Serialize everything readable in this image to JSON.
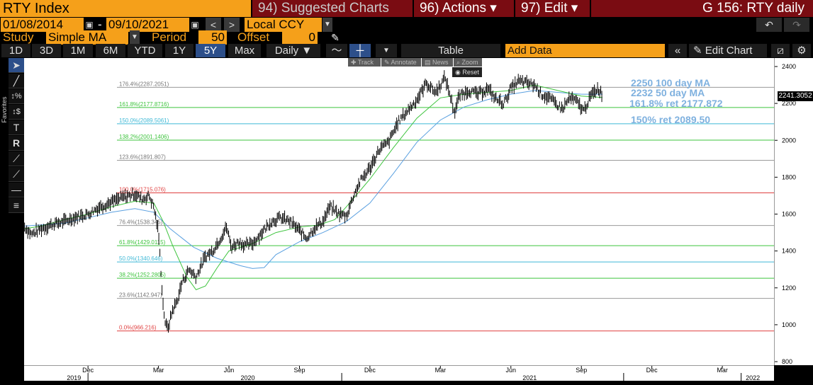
{
  "header": {
    "ticker": "RTY Index",
    "suggested": "94) Suggested Charts",
    "actions": "96) Actions ▾",
    "edit": "97) Edit ▾",
    "title": "G 156: RTY daily"
  },
  "controls": {
    "start_date": "01/08/2014",
    "separator": "-",
    "end_date": "09/10/2021",
    "currency": "Local CCY",
    "study_label": "Study",
    "study_value": "Simple MA",
    "period_label": "Period",
    "period_value": "50",
    "offset_label": "Offset",
    "offset_value": "0"
  },
  "periods": [
    "1D",
    "3D",
    "1M",
    "6M",
    "YTD",
    "1Y",
    "5Y",
    "Max"
  ],
  "selected_period": "5Y",
  "toolbar": {
    "frequency": "Daily ▼",
    "table": "Table",
    "add_data": "Add Data",
    "edit_chart": "Edit Chart"
  },
  "mini_toolbar": {
    "track": "Track",
    "annotate": "Annotate",
    "news": "News",
    "zoom": "Zoom",
    "reset": "Reset"
  },
  "sidebar": {
    "favorites": "Favorites"
  },
  "chart_data": {
    "type": "line",
    "series": [
      {
        "name": "RTY Index",
        "color": "#000000"
      },
      {
        "name": "50 day MA",
        "color": "#3ec43e"
      },
      {
        "name": "100 day MA",
        "color": "#5aa0e0"
      }
    ],
    "y_ticks": [
      "2400",
      "2200",
      "2000",
      "1800",
      "1600",
      "1400",
      "1200",
      "1000",
      "800"
    ],
    "ylim": [
      800,
      2420
    ],
    "x_ticks": [
      {
        "label": "Dec",
        "month": 0
      },
      {
        "label": "Mar",
        "month": 3
      },
      {
        "label": "Jun",
        "month": 6
      },
      {
        "label": "Sep",
        "month": 9
      },
      {
        "label": "Dec",
        "month": 12
      },
      {
        "label": "Mar",
        "month": 15
      },
      {
        "label": "Jun",
        "month": 18
      },
      {
        "label": "Sep",
        "month": 21
      },
      {
        "label": "Dec",
        "month": 24
      },
      {
        "label": "Mar",
        "month": 27
      }
    ],
    "x_years": [
      {
        "label": "2019",
        "month": -0.6
      },
      {
        "label": "2020",
        "month": 6.8
      },
      {
        "label": "2021",
        "month": 18.8
      },
      {
        "label": "2022",
        "month": 28.3
      }
    ],
    "fib_levels": [
      {
        "label": "176.4%(2287.2051)",
        "value": 2287.2051,
        "color": "#9a9a9a"
      },
      {
        "label": "161.8%(2177.8716)",
        "value": 2177.8716,
        "color": "#3ec43e"
      },
      {
        "label": "150.0%(2089.5061)",
        "value": 2089.5061,
        "color": "#3fb9d6"
      },
      {
        "label": "138.2%(2001.1406)",
        "value": 2001.1406,
        "color": "#3ec43e"
      },
      {
        "label": "123.6%(1891.807)",
        "value": 1891.807,
        "color": "#9a9a9a"
      },
      {
        "label": "100.0%(1715.076)",
        "value": 1715.076,
        "color": "#e04040"
      },
      {
        "label": "76.4%(1538.345)",
        "value": 1538.345,
        "color": "#9a9a9a"
      },
      {
        "label": "61.8%(1429.0115)",
        "value": 1429.0115,
        "color": "#3ec43e"
      },
      {
        "label": "50.0%(1340.646)",
        "value": 1340.646,
        "color": "#3fb9d6"
      },
      {
        "label": "38.2%(1252.2805)",
        "value": 1252.2805,
        "color": "#3ec43e"
      },
      {
        "label": "23.6%(1142.947)",
        "value": 1142.947,
        "color": "#9a9a9a"
      },
      {
        "label": "0.0%(966.216)",
        "value": 966.216,
        "color": "#e04040"
      }
    ],
    "price": [
      [
        -2.7,
        1530
      ],
      [
        -2.4,
        1490
      ],
      [
        -2,
        1520
      ],
      [
        -1.5,
        1545
      ],
      [
        -1,
        1560
      ],
      [
        -0.5,
        1585
      ],
      [
        0,
        1600
      ],
      [
        0.5,
        1640
      ],
      [
        1,
        1665
      ],
      [
        1.5,
        1690
      ],
      [
        2,
        1710
      ],
      [
        2.3,
        1680
      ],
      [
        2.6,
        1700
      ],
      [
        2.8,
        1640
      ],
      [
        3.0,
        1500
      ],
      [
        3.1,
        1300
      ],
      [
        3.2,
        1100
      ],
      [
        3.3,
        1000
      ],
      [
        3.4,
        980
      ],
      [
        3.6,
        1080
      ],
      [
        3.8,
        1130
      ],
      [
        4.0,
        1230
      ],
      [
        4.3,
        1300
      ],
      [
        4.6,
        1260
      ],
      [
        5.0,
        1370
      ],
      [
        5.3,
        1400
      ],
      [
        5.6,
        1460
      ],
      [
        5.9,
        1530
      ],
      [
        6.1,
        1420
      ],
      [
        6.4,
        1450
      ],
      [
        6.7,
        1430
      ],
      [
        7,
        1440
      ],
      [
        7.4,
        1500
      ],
      [
        7.8,
        1560
      ],
      [
        8.2,
        1580
      ],
      [
        8.6,
        1560
      ],
      [
        9,
        1510
      ],
      [
        9.3,
        1470
      ],
      [
        9.6,
        1520
      ],
      [
        10,
        1560
      ],
      [
        10.3,
        1640
      ],
      [
        10.7,
        1600
      ],
      [
        11,
        1590
      ],
      [
        11.3,
        1700
      ],
      [
        11.6,
        1780
      ],
      [
        12,
        1850
      ],
      [
        12.4,
        1950
      ],
      [
        12.8,
        1990
      ],
      [
        13.2,
        2100
      ],
      [
        13.6,
        2160
      ],
      [
        14,
        2220
      ],
      [
        14.4,
        2310
      ],
      [
        14.8,
        2260
      ],
      [
        15,
        2300
      ],
      [
        15.2,
        2340
      ],
      [
        15.4,
        2250
      ],
      [
        15.6,
        2150
      ],
      [
        15.8,
        2240
      ],
      [
        16.2,
        2270
      ],
      [
        16.6,
        2250
      ],
      [
        17,
        2280
      ],
      [
        17.4,
        2220
      ],
      [
        17.7,
        2200
      ],
      [
        18,
        2280
      ],
      [
        18.3,
        2320
      ],
      [
        18.7,
        2310
      ],
      [
        19,
        2300
      ],
      [
        19.3,
        2250
      ],
      [
        19.6,
        2230
      ],
      [
        19.9,
        2200
      ],
      [
        20.2,
        2170
      ],
      [
        20.5,
        2230
      ],
      [
        20.8,
        2210
      ],
      [
        21.1,
        2160
      ],
      [
        21.4,
        2240
      ],
      [
        21.7,
        2280
      ],
      [
        21.9,
        2250
      ]
    ],
    "ma50": [
      [
        -2.7,
        1520
      ],
      [
        -2,
        1535
      ],
      [
        -1,
        1570
      ],
      [
        0,
        1600
      ],
      [
        1,
        1640
      ],
      [
        2,
        1670
      ],
      [
        2.8,
        1660
      ],
      [
        3.2,
        1560
      ],
      [
        3.6,
        1430
      ],
      [
        4.2,
        1260
      ],
      [
        4.6,
        1190
      ],
      [
        5,
        1210
      ],
      [
        5.5,
        1310
      ],
      [
        6,
        1400
      ],
      [
        7,
        1440
      ],
      [
        8,
        1500
      ],
      [
        9,
        1530
      ],
      [
        9.8,
        1540
      ],
      [
        10.5,
        1570
      ],
      [
        11,
        1640
      ],
      [
        12,
        1790
      ],
      [
        13,
        1960
      ],
      [
        14,
        2120
      ],
      [
        15,
        2230
      ],
      [
        16,
        2250
      ],
      [
        17,
        2260
      ],
      [
        18,
        2270
      ],
      [
        19,
        2300
      ],
      [
        20,
        2270
      ],
      [
        21,
        2240
      ],
      [
        21.9,
        2232
      ]
    ],
    "ma100": [
      [
        -2.7,
        1535
      ],
      [
        -1,
        1550
      ],
      [
        0,
        1580
      ],
      [
        1,
        1610
      ],
      [
        2,
        1630
      ],
      [
        2.8,
        1610
      ],
      [
        3.5,
        1520
      ],
      [
        4.5,
        1420
      ],
      [
        5.5,
        1360
      ],
      [
        6.5,
        1320
      ],
      [
        7,
        1305
      ],
      [
        7.5,
        1310
      ],
      [
        8,
        1380
      ],
      [
        9,
        1450
      ],
      [
        10,
        1500
      ],
      [
        11,
        1560
      ],
      [
        12,
        1660
      ],
      [
        13,
        1820
      ],
      [
        14,
        1990
      ],
      [
        15,
        2110
      ],
      [
        16,
        2180
      ],
      [
        17,
        2220
      ],
      [
        18,
        2250
      ],
      [
        19,
        2270
      ],
      [
        20,
        2260
      ],
      [
        21,
        2250
      ],
      [
        21.9,
        2250
      ]
    ],
    "last_value": "2241.3052",
    "annotations": [
      "2250  100 day MA",
      "2232 50 day MA",
      "161.8% ret 2177.872",
      "150% ret 2089.50"
    ]
  }
}
